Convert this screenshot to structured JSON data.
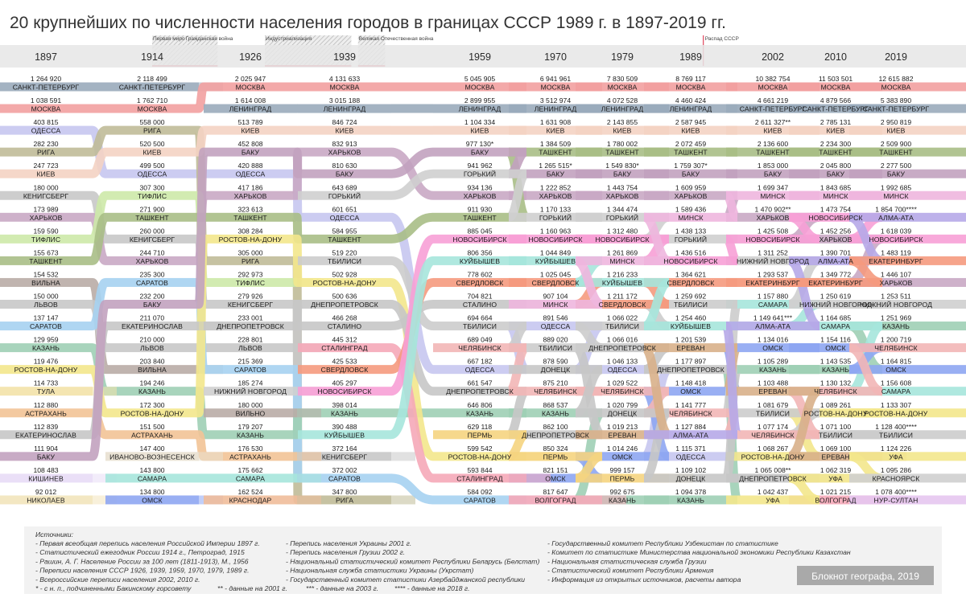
{
  "title": "20 крупнейших по численности населения городов в границах СССР 1989 г. в 1897-2019 гг.",
  "events": [
    {
      "label": "Первая мировая война",
      "from": 1914,
      "to": 1918
    },
    {
      "label": "Гражданская война",
      "from": 1918,
      "to": 1922
    },
    {
      "label": "Индустриализация",
      "from": 1928,
      "to": 1940
    },
    {
      "label": "Великая Отечественная война",
      "from": 1941,
      "to": 1945
    },
    {
      "label": "Распад СССР",
      "from": 1991,
      "to": 1991
    }
  ],
  "colors": {
    "САНКТ-ПЕТЕРБУРГ": "#9aabbb",
    "МОСКВА": "#f2a0a0",
    "ОДЕССА": "#c7c7f0",
    "РИГА": "#c0bb98",
    "КИЕВ": "#f4d3c3",
    "КЕНИГСБЕРГ": "#c8c8c8",
    "ХАРЬКОВ": "#c9a9c4",
    "ТИФЛИС": "#cde9a8",
    "ТАШКЕНТ": "#a8be86",
    "ВИЛЬНА": "#b9aca6",
    "ЛЬВОВ": "#c8c8c8",
    "САРАТОВ": "#a6d1f1",
    "КАЗАНЬ": "#9fcfb5",
    "РОСТОВ-НА-ДОНУ": "#f3e78c",
    "ТУЛА": "#f3e2a9",
    "АСТРАХАНЬ": "#f2c396",
    "ЕКАТЕРИНОСЛАВ": "#c6c6c6",
    "БАКУ": "#c2a2bf",
    "КИШИНЕВ": "#e8dcf6",
    "НИКОЛАЕВ": "#f2e4bb",
    "ИВАНОВО-ВОЗНЕСЕНСК": "#e8e0d0",
    "САМАРА": "#a6e5db",
    "ОМСК": "#8ea6f2",
    "ЛЕНИНГРАД": "#9aabbb",
    "ДНЕПРОПЕТРОВСК": "#c6c6c6",
    "НИЖНИЙ НОВГОРОД": "#cfcfcf",
    "ВИЛЬНО": "#b9aca6",
    "КРАСНОДАР": "#f0bd9a",
    "ГОРЬКИЙ": "#cfcfcf",
    "СТАЛИНО": "#c6c6c6",
    "СТАЛИНГРАД": "#f5a8b8",
    "СВЕРДЛОВСК": "#f59a7e",
    "НОВОСИБИРСК": "#f7a0d6",
    "КУЙБЫШЕВ": "#a6e5db",
    "ЧЕЛЯБИНСК": "#f2b6b6",
    "ПЕРМЬ": "#f5d480",
    "ДОНЕЦК": "#c6c6c6",
    "ВОЛГОГРАД": "#f5a8b8",
    "МИНСК": "#eeb6de",
    "ЕРЕВАН": "#d8b08a",
    "АЛМА-АТА": "#b6a8e8",
    "ЕКАТЕРИНБУРГ": "#f59a7e",
    "УФА": "#f3e78c",
    "КРАСНОЯРСК": "#cfcfcf",
    "НУР-СУЛТАН": "#e6c6f0",
    "ЕКАТЕРИНБУРГ2": "#f59a7e"
  },
  "chart_data": {
    "type": "bump",
    "years": [
      "1897",
      "1914",
      "1926",
      "1939",
      "1959",
      "1970",
      "1979",
      "1989",
      "2002",
      "2010",
      "2019"
    ],
    "columns": [
      [
        [
          "1 264 920",
          "САНКТ-ПЕТЕРБУРГ"
        ],
        [
          "1 038 591",
          "МОСКВА"
        ],
        [
          "403 815",
          "ОДЕССА"
        ],
        [
          "282 230",
          "РИГА"
        ],
        [
          "247 723",
          "КИЕВ"
        ],
        [
          "180 000",
          "КЕНИГСБЕРГ"
        ],
        [
          "173 989",
          "ХАРЬКОВ"
        ],
        [
          "159 590",
          "ТИФЛИС"
        ],
        [
          "155 673",
          "ТАШКЕНТ"
        ],
        [
          "154 532",
          "ВИЛЬНА"
        ],
        [
          "150 000",
          "ЛЬВОВ"
        ],
        [
          "137 147",
          "САРАТОВ"
        ],
        [
          "129 959",
          "КАЗАНЬ"
        ],
        [
          "119 476",
          "РОСТОВ-НА-ДОНУ"
        ],
        [
          "114 733",
          "ТУЛА"
        ],
        [
          "112 880",
          "АСТРАХАНЬ"
        ],
        [
          "112 839",
          "ЕКАТЕРИНОСЛАВ"
        ],
        [
          "111 904",
          "БАКУ"
        ],
        [
          "108 483",
          "КИШИНЕВ"
        ],
        [
          "92 012",
          "НИКОЛАЕВ"
        ]
      ],
      [
        [
          "2 118 499",
          "САНКТ-ПЕТЕРБУРГ"
        ],
        [
          "1 762 710",
          "МОСКВА"
        ],
        [
          "558 000",
          "РИГА"
        ],
        [
          "520 500",
          "КИЕВ"
        ],
        [
          "499 500",
          "ОДЕССА"
        ],
        [
          "307 300",
          "ТИФЛИС"
        ],
        [
          "271 900",
          "ТАШКЕНТ"
        ],
        [
          "260 000",
          "КЕНИГСБЕРГ"
        ],
        [
          "244 710",
          "ХАРЬКОВ"
        ],
        [
          "235 300",
          "САРАТОВ"
        ],
        [
          "232 200",
          "БАКУ"
        ],
        [
          "211 070",
          "ЕКАТЕРИНОСЛАВ"
        ],
        [
          "210 000",
          "ЛЬВОВ"
        ],
        [
          "203 840",
          "ВИЛЬНА"
        ],
        [
          "194 246",
          "КАЗАНЬ"
        ],
        [
          "172 300",
          "РОСТОВ-НА-ДОНУ"
        ],
        [
          "151 500",
          "АСТРАХАНЬ"
        ],
        [
          "147 400",
          "ИВАНОВО-ВОЗНЕСЕНСК"
        ],
        [
          "143 800",
          "САМАРА"
        ],
        [
          "134 800",
          "ОМСК"
        ]
      ],
      [
        [
          "2 025 947",
          "МОСКВА"
        ],
        [
          "1 614 008",
          "ЛЕНИНГРАД"
        ],
        [
          "513 789",
          "КИЕВ"
        ],
        [
          "452 808",
          "БАКУ"
        ],
        [
          "420 888",
          "ОДЕССА"
        ],
        [
          "417 186",
          "ХАРЬКОВ"
        ],
        [
          "323 613",
          "ТАШКЕНТ"
        ],
        [
          "308 284",
          "РОСТОВ-НА-ДОНУ"
        ],
        [
          "305 000",
          "РИГА"
        ],
        [
          "292 973",
          "ТИФЛИС"
        ],
        [
          "279 926",
          "КЕНИГСБЕРГ"
        ],
        [
          "233 001",
          "ДНЕПРОПЕТРОВСК"
        ],
        [
          "228 801",
          "ЛЬВОВ"
        ],
        [
          "215 369",
          "САРАТОВ"
        ],
        [
          "185 274",
          "НИЖНИЙ НОВГОРОД"
        ],
        [
          "180 000",
          "ВИЛЬНО"
        ],
        [
          "179 207",
          "КАЗАНЬ"
        ],
        [
          "176 530",
          "АСТРАХАНЬ"
        ],
        [
          "175 662",
          "САМАРА"
        ],
        [
          "162 524",
          "КРАСНОДАР"
        ]
      ],
      [
        [
          "4 131 633",
          "МОСКВА"
        ],
        [
          "3 015 188",
          "ЛЕНИНГРАД"
        ],
        [
          "846 724",
          "КИЕВ"
        ],
        [
          "832 913",
          "ХАРЬКОВ"
        ],
        [
          "810 630",
          "БАКУ"
        ],
        [
          "643 689",
          "ГОРЬКИЙ"
        ],
        [
          "601 651",
          "ОДЕССА"
        ],
        [
          "584 955",
          "ТАШКЕНТ"
        ],
        [
          "519 220",
          "ТБИЛИСИ"
        ],
        [
          "502 928",
          "РОСТОВ-НА-ДОНУ"
        ],
        [
          "500 636",
          "ДНЕПРОПЕТРОВСК"
        ],
        [
          "466 268",
          "СТАЛИНО"
        ],
        [
          "445 312",
          "СТАЛИНГРАД"
        ],
        [
          "425 533",
          "СВЕРДЛОВСК"
        ],
        [
          "405 297",
          "НОВОСИБИРСК"
        ],
        [
          "398 014",
          "КАЗАНЬ"
        ],
        [
          "390 488",
          "КУЙБЫШЕВ"
        ],
        [
          "372 164",
          "КЕНИГСБЕРГ"
        ],
        [
          "372 002",
          "САРАТОВ"
        ],
        [
          "347 800",
          "РИГА"
        ]
      ],
      [
        [
          "5 045 905",
          "МОСКВА"
        ],
        [
          "2 899 955",
          "ЛЕНИНГРАД"
        ],
        [
          "1 104 334",
          "КИЕВ"
        ],
        [
          "977 130*",
          "БАКУ"
        ],
        [
          "941 962",
          "ГОРЬКИЙ"
        ],
        [
          "934 136",
          "ХАРЬКОВ"
        ],
        [
          "911 930",
          "ТАШКЕНТ"
        ],
        [
          "885 045",
          "НОВОСИБИРСК"
        ],
        [
          "806 356",
          "КУЙБЫШЕВ"
        ],
        [
          "778 602",
          "СВЕРДЛОВСК"
        ],
        [
          "704 821",
          "СТАЛИНО"
        ],
        [
          "694 664",
          "ТБИЛИСИ"
        ],
        [
          "689 049",
          "ЧЕЛЯБИНСК"
        ],
        [
          "667 182",
          "ОДЕССА"
        ],
        [
          "661 547",
          "ДНЕПРОПЕТРОВСК"
        ],
        [
          "646 806",
          "КАЗАНЬ"
        ],
        [
          "629 118",
          "ПЕРМЬ"
        ],
        [
          "599 542",
          "РОСТОВ-НА-ДОНУ"
        ],
        [
          "593 844",
          "СТАЛИНГРАД"
        ],
        [
          "584 092",
          "САРАТОВ"
        ]
      ],
      [
        [
          "6 941 961",
          "МОСКВА"
        ],
        [
          "3 512 974",
          "ЛЕНИНГРАД"
        ],
        [
          "1 631 908",
          "КИЕВ"
        ],
        [
          "1 384 509",
          "ТАШКЕНТ"
        ],
        [
          "1 265 515*",
          "БАКУ"
        ],
        [
          "1 222 852",
          "ХАРЬКОВ"
        ],
        [
          "1 170 133",
          "ГОРЬКИЙ"
        ],
        [
          "1 160 963",
          "НОВОСИБИРСК"
        ],
        [
          "1 044 849",
          "КУЙБЫШЕВ"
        ],
        [
          "1 025 045",
          "СВЕРДЛОВСК"
        ],
        [
          "907 104",
          "МИНСК"
        ],
        [
          "891 546",
          "ОДЕССА"
        ],
        [
          "889 020",
          "ТБИЛИСИ"
        ],
        [
          "878 590",
          "ДОНЕЦК"
        ],
        [
          "875 210",
          "ЧЕЛЯБИНСК"
        ],
        [
          "868 537",
          "КАЗАНЬ"
        ],
        [
          "862 100",
          "ДНЕПРОПЕТРОВСК"
        ],
        [
          "850 324",
          "ПЕРМЬ"
        ],
        [
          "821 151",
          "ОМСК"
        ],
        [
          "817 647",
          "ВОЛГОГРАД"
        ]
      ],
      [
        [
          "7 830 509",
          "МОСКВА"
        ],
        [
          "4 072 528",
          "ЛЕНИНГРАД"
        ],
        [
          "2 143 855",
          "КИЕВ"
        ],
        [
          "1 780 002",
          "ТАШКЕНТ"
        ],
        [
          "1 549 830*",
          "БАКУ"
        ],
        [
          "1 443 754",
          "ХАРЬКОВ"
        ],
        [
          "1 344 474",
          "ГОРЬКИЙ"
        ],
        [
          "1 312 480",
          "НОВОСИБИРСК"
        ],
        [
          "1 261 869",
          "МИНСК"
        ],
        [
          "1 216 233",
          "КУЙБЫШЕВ"
        ],
        [
          "1 211 172",
          "СВЕРДЛОВСК"
        ],
        [
          "1 066 022",
          "ТБИЛИСИ"
        ],
        [
          "1 066 016",
          "ДНЕПРОПЕТРОВСК"
        ],
        [
          "1 046 133",
          "ОДЕССА"
        ],
        [
          "1 029 522",
          "ЧЕЛЯБИНСК"
        ],
        [
          "1 020 799",
          "ДОНЕЦК"
        ],
        [
          "1 019 213",
          "ЕРЕВАН"
        ],
        [
          "1 014 246",
          "ОМСК"
        ],
        [
          "999 157",
          "ПЕРМЬ"
        ],
        [
          "992 675",
          "КАЗАНЬ"
        ]
      ],
      [
        [
          "8 769 117",
          "МОСКВА"
        ],
        [
          "4 460 424",
          "ЛЕНИНГРАД"
        ],
        [
          "2 587 945",
          "КИЕВ"
        ],
        [
          "2 072 459",
          "ТАШКЕНТ"
        ],
        [
          "1 759 307*",
          "БАКУ"
        ],
        [
          "1 609 959",
          "ХАРЬКОВ"
        ],
        [
          "1 589 436",
          "МИНСК"
        ],
        [
          "1 438 133",
          "ГОРЬКИЙ"
        ],
        [
          "1 436 516",
          "НОВОСИБИРСК"
        ],
        [
          "1 364 621",
          "СВЕРДЛОВСК"
        ],
        [
          "1 259 692",
          "ТБИЛИСИ"
        ],
        [
          "1 254 460",
          "КУЙБЫШЕВ"
        ],
        [
          "1 201 539",
          "ЕРЕВАН"
        ],
        [
          "1 177 897",
          "ДНЕПРОПЕТРОВСК"
        ],
        [
          "1 148 418",
          "ОМСК"
        ],
        [
          "1 141 777",
          "ЧЕЛЯБИНСК"
        ],
        [
          "1 127 884",
          "АЛМА-АТА"
        ],
        [
          "1 115 371",
          "ОДЕССА"
        ],
        [
          "1 109 102",
          "ДОНЕЦК"
        ],
        [
          "1 094 378",
          "КАЗАНЬ"
        ]
      ],
      [
        [
          "10 382 754",
          "МОСКВА"
        ],
        [
          "4 661 219",
          "САНКТ-ПЕТЕРБУРГ"
        ],
        [
          "2 611 327**",
          "КИЕВ"
        ],
        [
          "2 136 600",
          "ТАШКЕНТ"
        ],
        [
          "1 853 000",
          "БАКУ"
        ],
        [
          "1 699 347",
          "МИНСК"
        ],
        [
          "1 470 902**",
          "ХАРЬКОВ"
        ],
        [
          "1 425 508",
          "НОВОСИБИРСК"
        ],
        [
          "1 311 252",
          "НИЖНИЙ НОВГОРОД"
        ],
        [
          "1 293 537",
          "ЕКАТЕРИНБУРГ"
        ],
        [
          "1 157 880",
          "САМАРА"
        ],
        [
          "1 149 641***",
          "АЛМА-АТА"
        ],
        [
          "1 134 016",
          "ОМСК"
        ],
        [
          "1 105 289",
          "КАЗАНЬ"
        ],
        [
          "1 103 488",
          "ЕРЕВАН"
        ],
        [
          "1 081 679",
          "ТБИЛИСИ"
        ],
        [
          "1 077 174",
          "ЧЕЛЯБИНСК"
        ],
        [
          "1 068 267",
          "РОСТОВ-НА-ДОНУ"
        ],
        [
          "1 065 008**",
          "ДНЕПРОПЕТРОВСК"
        ],
        [
          "1 042 437",
          "УФА"
        ]
      ],
      [
        [
          "11 503 501",
          "МОСКВА"
        ],
        [
          "4 879 566",
          "САНКТ-ПЕТЕРБУРГ"
        ],
        [
          "2 785 131",
          "КИЕВ"
        ],
        [
          "2 234 300",
          "ТАШКЕНТ"
        ],
        [
          "2 045 800",
          "БАКУ"
        ],
        [
          "1 843 685",
          "МИНСК"
        ],
        [
          "1 473 754",
          "НОВОСИБИРСК"
        ],
        [
          "1 452 256",
          "ХАРЬКОВ"
        ],
        [
          "1 390 701",
          "АЛМА-АТА"
        ],
        [
          "1 349 772",
          "ЕКАТЕРИНБУРГ"
        ],
        [
          "1 250 619",
          "НИЖНИЙ НОВГОРОД"
        ],
        [
          "1 164 685",
          "САМАРА"
        ],
        [
          "1 154 116",
          "ОМСК"
        ],
        [
          "1 143 535",
          "КАЗАНЬ"
        ],
        [
          "1 130 132",
          "ЧЕЛЯБИНСК"
        ],
        [
          "1 089 261",
          "РОСТОВ-НА-ДОНУ"
        ],
        [
          "1 071 100",
          "ТБИЛИСИ"
        ],
        [
          "1 069 100",
          "ЕРЕВАН"
        ],
        [
          "1 062 319",
          "УФА"
        ],
        [
          "1 021 215",
          "ВОЛГОГРАД"
        ]
      ],
      [
        [
          "12 615 882",
          "МОСКВА"
        ],
        [
          "5 383 890",
          "САНКТ-ПЕТЕРБУРГ"
        ],
        [
          "2 950 819",
          "КИЕВ"
        ],
        [
          "2 509 900",
          "ТАШКЕНТ"
        ],
        [
          "2 277 500",
          "БАКУ"
        ],
        [
          "1 992 685",
          "МИНСК"
        ],
        [
          "1 854 700****",
          "АЛМА-АТА"
        ],
        [
          "1 618 039",
          "НОВОСИБИРСК"
        ],
        [
          "1 483 119",
          "ЕКАТЕРИНБУРГ"
        ],
        [
          "1 446 107",
          "ХАРЬКОВ"
        ],
        [
          "1 253 511",
          "НИЖНИЙ НОВГОРОД"
        ],
        [
          "1 251 969",
          "КАЗАНЬ"
        ],
        [
          "1 200 719",
          "ЧЕЛЯБИНСК"
        ],
        [
          "1 164 815",
          "ОМСК"
        ],
        [
          "1 156 608",
          "САМАРА"
        ],
        [
          "1 133 307",
          "РОСТОВ-НА-ДОНУ"
        ],
        [
          "1 128 400****",
          "ТБИЛИСИ"
        ],
        [
          "1 124 226",
          "УФА"
        ],
        [
          "1 095 286",
          "КРАСНОЯРСК"
        ],
        [
          "1 078 400****",
          "НУР-СУЛТАН"
        ]
      ]
    ]
  },
  "sources": {
    "heading": "Источники:",
    "col1": [
      "- Первая всеобщая перепись населения Российской Империи 1897 г.",
      "- Статистический ежегодник России 1914 г., Петроград, 1915",
      "- Рашин, А. Г. Население России за 100 лет (1811-1913), М., 1956",
      "- Переписи населения СССР 1926, 1939, 1959, 1970, 1979, 1989 г.",
      "- Всероссийские переписи населения 2002, 2010 г."
    ],
    "col2": [
      "- Перепись населения Украины 2001 г.",
      "- Перепись населения Грузии 2002 г.",
      "- Национальный статистический комитет Республики Беларусь (Белстат)",
      "- Национальная служба статистики Украины (Укрстат)",
      "- Государственный комитет статистики Азербайджанской республики"
    ],
    "col3": [
      "- Государственный комитет Республики Узбекистан по статистике",
      "- Комитет по статистике Министерства национальной экономики Республики Казахстан",
      "- Национальная статистическая служба Грузии",
      "- Статистический комитет Республики Армения",
      "- Информация из открытых источников, расчеты автора"
    ],
    "footnotes": [
      "* - с н. п., подчиненными Бакинскому горсовету",
      "** - данные на 2001 г.",
      "*** - данные на 2003 г.",
      "**** - данные на 2018 г."
    ]
  },
  "brand": "Блокнот географа, 2019"
}
